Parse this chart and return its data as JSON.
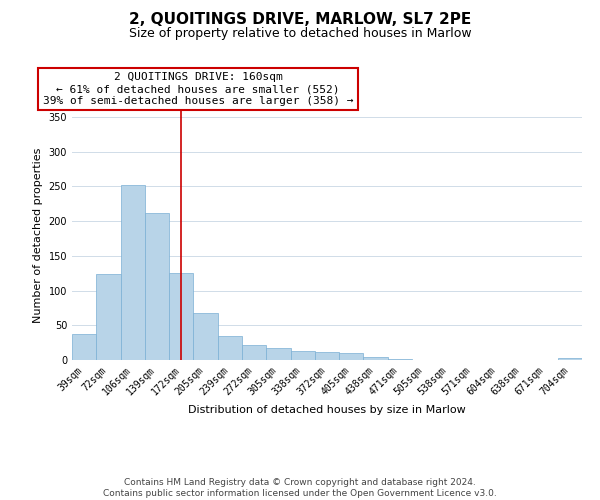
{
  "title": "2, QUOITINGS DRIVE, MARLOW, SL7 2PE",
  "subtitle": "Size of property relative to detached houses in Marlow",
  "xlabel": "Distribution of detached houses by size in Marlow",
  "ylabel": "Number of detached properties",
  "categories": [
    "39sqm",
    "72sqm",
    "106sqm",
    "139sqm",
    "172sqm",
    "205sqm",
    "239sqm",
    "272sqm",
    "305sqm",
    "338sqm",
    "372sqm",
    "405sqm",
    "438sqm",
    "471sqm",
    "505sqm",
    "538sqm",
    "571sqm",
    "604sqm",
    "638sqm",
    "671sqm",
    "704sqm"
  ],
  "values": [
    38,
    124,
    252,
    211,
    125,
    68,
    34,
    21,
    17,
    13,
    11,
    10,
    5,
    2,
    0,
    0,
    0,
    0,
    0,
    0,
    3
  ],
  "bar_color": "#b8d4e8",
  "bar_edge_color": "#7aafd4",
  "vline_x": 4,
  "vline_color": "#cc0000",
  "annotation_line1": "2 QUOITINGS DRIVE: 160sqm",
  "annotation_line2": "← 61% of detached houses are smaller (552)",
  "annotation_line3": "39% of semi-detached houses are larger (358) →",
  "annotation_box_color": "#ffffff",
  "annotation_box_edge_color": "#cc0000",
  "ylim": [
    0,
    360
  ],
  "yticks": [
    0,
    50,
    100,
    150,
    200,
    250,
    300,
    350
  ],
  "footnote": "Contains HM Land Registry data © Crown copyright and database right 2024.\nContains public sector information licensed under the Open Government Licence v3.0.",
  "background_color": "#ffffff",
  "grid_color": "#d0dce8",
  "title_fontsize": 11,
  "subtitle_fontsize": 9,
  "axis_label_fontsize": 8,
  "tick_fontsize": 7,
  "annotation_fontsize": 8,
  "footnote_fontsize": 6.5
}
